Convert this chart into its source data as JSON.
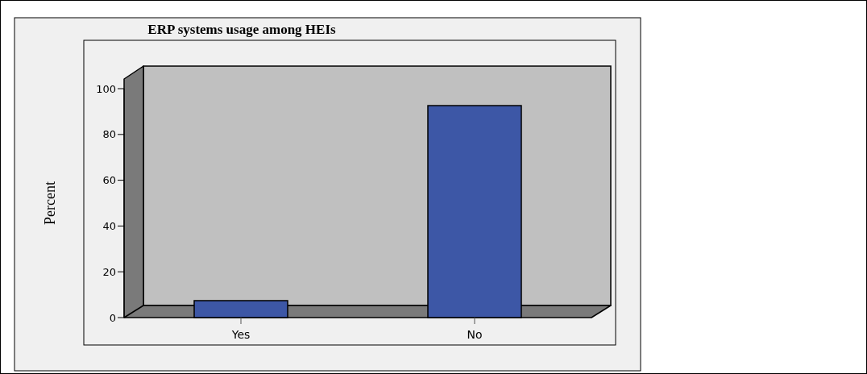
{
  "chart_data": {
    "type": "bar",
    "title": "ERP systems usage among HEIs",
    "ylabel": "Percent",
    "categories": [
      "Yes",
      "No"
    ],
    "values": [
      7.4,
      92.6
    ],
    "color": "#3d57a6",
    "ylim": [
      0,
      100
    ],
    "yticks": [
      0,
      20,
      40,
      60,
      80,
      100
    ],
    "grid": false
  }
}
